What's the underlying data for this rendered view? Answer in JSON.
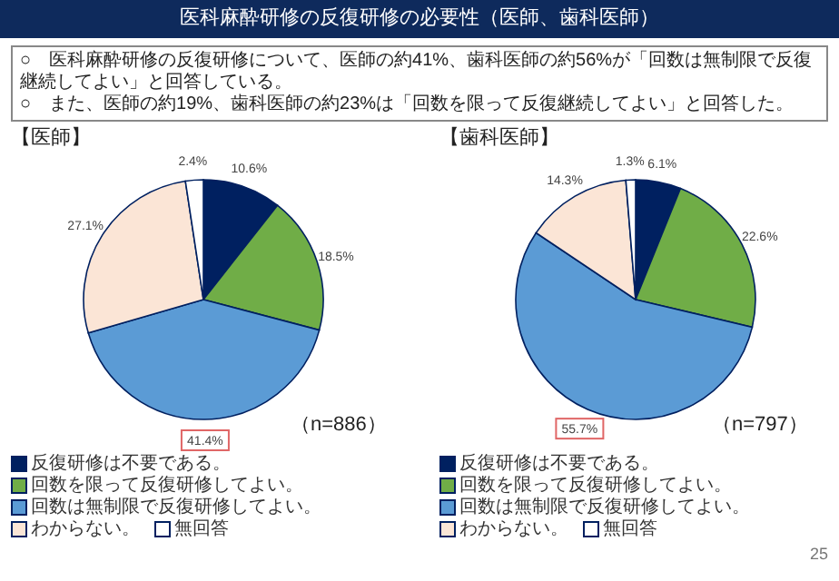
{
  "chart_data": [
    {
      "type": "pie",
      "title": "【医師】",
      "annotations": [
        "医科麻酔研修の反復研修の必要性（医師、歯科医師）",
        "○　医科麻酔研修の反復研修について、医師の約41%、歯科医師の約56%が「回数は無制限で反復継続してよい」と回答している。",
        "○　また、医師の約19%、歯科医師の約23%は「回数を限って反復継続してよい」と回答した。",
        "（n=886）"
      ],
      "categories": [
        "反復研修は不要である。",
        "回数を限って反復研修してよい。",
        "回数は無制限で反復研修してよい。",
        "わからない。",
        "無回答"
      ],
      "values": [
        10.6,
        18.5,
        41.4,
        27.1,
        2.4
      ],
      "value_labels": [
        "10.6%",
        "18.5%",
        "41.4%",
        "27.1%",
        "2.4%"
      ],
      "colors": [
        "#002060",
        "#70ad47",
        "#5b9bd5",
        "#fbe5d6",
        "#ffffff"
      ],
      "legend": "bottom"
    },
    {
      "type": "pie",
      "title": "【歯科医師】",
      "annotations": [
        "（n=797）",
        "25"
      ],
      "categories": [
        "反復研修は不要である。",
        "回数を限って反復研修してよい。",
        "回数は無制限で反復研修してよい。",
        "わからない。",
        "無回答"
      ],
      "values": [
        6.1,
        22.6,
        55.7,
        14.3,
        1.3
      ],
      "value_labels": [
        "6.1%",
        "22.6%",
        "55.7%",
        "14.3%",
        "1.3%"
      ],
      "colors": [
        "#002060",
        "#70ad47",
        "#5b9bd5",
        "#fbe5d6",
        "#ffffff"
      ],
      "legend": "bottom"
    }
  ]
}
